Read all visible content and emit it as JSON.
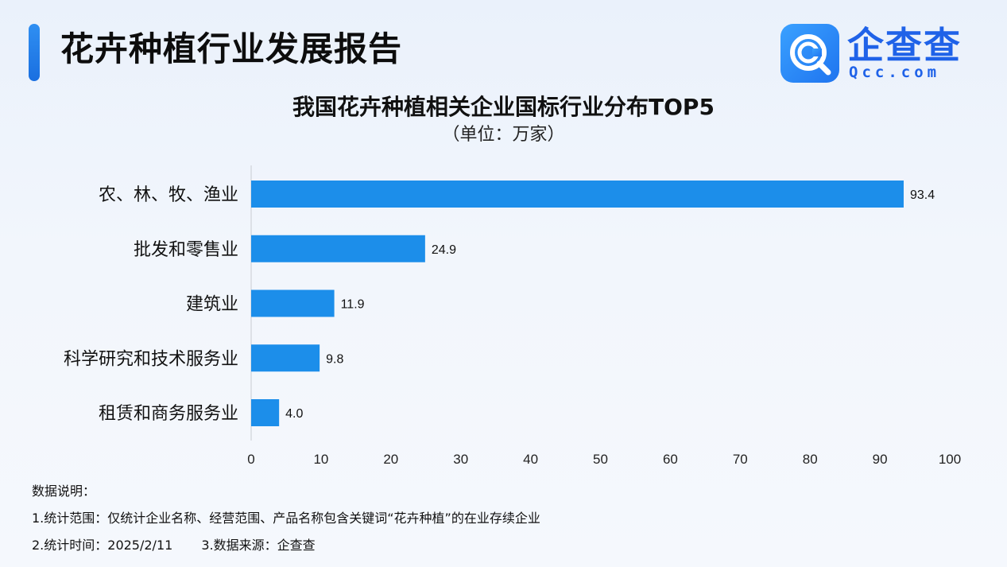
{
  "header": {
    "title": "花卉种植行业发展报告",
    "logo_text": "企查查",
    "logo_sub": "Qcc.com",
    "logo_icon": "qcc-magnifier-icon"
  },
  "colors": {
    "bar": "#1c8eea",
    "accent": "#1a72e6",
    "axis": "#c9ccd2"
  },
  "chart_data": {
    "type": "bar",
    "orientation": "horizontal",
    "title": "我国花卉种植相关企业国标行业分布TOP5",
    "subtitle": "（单位：万家）",
    "categories": [
      "农、林、牧、渔业",
      "批发和零售业",
      "建筑业",
      "科学研究和技术服务业",
      "租赁和商务服务业"
    ],
    "values": [
      93.4,
      24.9,
      11.9,
      9.8,
      4.0
    ],
    "value_labels": [
      "93.4",
      "24.9",
      "11.9",
      "9.8",
      "4.0"
    ],
    "xlim": [
      0,
      100
    ],
    "xticks": [
      "0",
      "10",
      "20",
      "30",
      "40",
      "50",
      "60",
      "70",
      "80",
      "90",
      "100"
    ],
    "grid": false,
    "legend": "none"
  },
  "notes": {
    "heading": "数据说明：",
    "line1": "1.统计范围：仅统计企业名称、经营范围、产品名称包含关键词“花卉种植”的在业存续企业",
    "line2a": "2.统计时间：2025/2/11",
    "line2b": "3.数据来源：企查查"
  }
}
